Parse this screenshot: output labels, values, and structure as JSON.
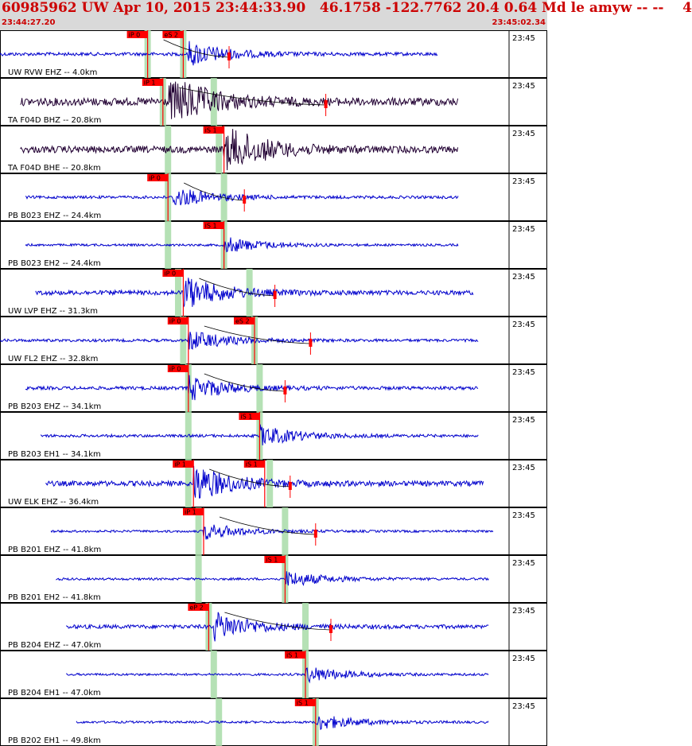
{
  "header": {
    "title": "60985962 UW Apr 10, 2015 23:44:33.90   46.1758 -122.7762 20.4 0.64 Md le amyw -- --    4",
    "start_time": "23:44:27.20",
    "end_time": "23:45:02.34"
  },
  "colors": {
    "header_bg": "#d9d9d9",
    "header_text": "#cc0000",
    "trace_vertical": "#0000cc",
    "trace_horizontal": "#220033",
    "pick_flag": "#ff0000",
    "pick_band": "#a8dca8",
    "panel_border": "#000000"
  },
  "chart_data": {
    "type": "line",
    "title": "60985962 UW Apr 10, 2015 23:44:33.90   46.1758 -122.7762 20.4 0.64 Md le amyw -- --    4",
    "x_axis": {
      "start": "23:44:27.20",
      "end": "23:45:02.34",
      "tick_label": "23:45"
    },
    "traces": [
      {
        "label": "UW RVW EHZ -- 4.0km",
        "network": "UW",
        "station": "RVW",
        "channel": "EHZ",
        "distance_km": 4.0,
        "color": "trace_vertical",
        "amp": 6,
        "quiet_range": [
          0.0,
          0.86
        ],
        "onset": 0.37,
        "picks": [
          {
            "label": "iP 0",
            "t": 0.29
          },
          {
            "label": "eS 2",
            "t": 0.36
          }
        ],
        "green_bands": [
          0.29,
          0.36
        ],
        "coda_red": 0.45
      },
      {
        "label": "TA F04D BHZ -- 20.8km",
        "network": "TA",
        "station": "F04D",
        "channel": "BHZ",
        "distance_km": 20.8,
        "color": "trace_horizontal",
        "amp": 14,
        "quiet_range": [
          0.04,
          0.9
        ],
        "onset": 0.33,
        "picks": [
          {
            "label": "iP 1",
            "t": 0.32
          }
        ],
        "green_bands": [
          0.32,
          0.42
        ],
        "coda_red": 0.64
      },
      {
        "label": "TA F04D BHE -- 20.8km",
        "network": "TA",
        "station": "F04D",
        "channel": "BHE",
        "distance_km": 20.8,
        "color": "trace_horizontal",
        "amp": 12,
        "quiet_range": [
          0.04,
          0.9
        ],
        "onset": 0.44,
        "picks": [
          {
            "label": "iS 1",
            "t": 0.44
          }
        ],
        "green_bands": [
          0.33,
          0.43
        ],
        "coda_red": null
      },
      {
        "label": "PB B023 EHZ -- 24.4km",
        "network": "PB",
        "station": "B023",
        "channel": "EHZ",
        "distance_km": 24.4,
        "color": "trace_vertical",
        "amp": 5,
        "quiet_range": [
          0.05,
          0.9
        ],
        "onset": 0.34,
        "picks": [
          {
            "label": "iP 0",
            "t": 0.33
          }
        ],
        "green_bands": [
          0.33,
          0.44
        ],
        "coda_red": 0.48
      },
      {
        "label": "PB B023 EH2 -- 24.4km",
        "network": "PB",
        "station": "B023",
        "channel": "EH2",
        "distance_km": 24.4,
        "color": "trace_vertical",
        "amp": 4,
        "quiet_range": [
          0.05,
          0.9
        ],
        "onset": 0.44,
        "picks": [
          {
            "label": "iS 1",
            "t": 0.44
          }
        ],
        "green_bands": [
          0.33,
          0.44
        ],
        "coda_red": null
      },
      {
        "label": "UW LVP EHZ -- 31.3km",
        "network": "UW",
        "station": "LVP",
        "channel": "EHZ",
        "distance_km": 31.3,
        "color": "trace_vertical",
        "amp": 8,
        "quiet_range": [
          0.07,
          0.93
        ],
        "onset": 0.36,
        "picks": [
          {
            "label": "iP 0",
            "t": 0.36
          }
        ],
        "green_bands": [
          0.35,
          0.49
        ],
        "coda_red": 0.54
      },
      {
        "label": "UW FL2 EHZ -- 32.8km",
        "network": "UW",
        "station": "FL2",
        "channel": "EHZ",
        "distance_km": 32.8,
        "color": "trace_vertical",
        "amp": 5,
        "quiet_range": [
          0.0,
          0.94
        ],
        "onset": 0.37,
        "picks": [
          {
            "label": "iP 0",
            "t": 0.37
          },
          {
            "label": "eS 2",
            "t": 0.5
          }
        ],
        "green_bands": [
          0.36,
          0.5
        ],
        "coda_red": 0.61
      },
      {
        "label": "PB B203 EHZ -- 34.1km",
        "network": "PB",
        "station": "B203",
        "channel": "EHZ",
        "distance_km": 34.1,
        "color": "trace_vertical",
        "amp": 6,
        "quiet_range": [
          0.05,
          0.94
        ],
        "onset": 0.37,
        "picks": [
          {
            "label": "iP 0",
            "t": 0.37
          }
        ],
        "green_bands": [
          0.37,
          0.51
        ],
        "coda_red": 0.56
      },
      {
        "label": "PB B203 EH1 -- 34.1km",
        "network": "PB",
        "station": "B203",
        "channel": "EH1",
        "distance_km": 34.1,
        "color": "trace_vertical",
        "amp": 5,
        "quiet_range": [
          0.08,
          0.94
        ],
        "onset": 0.51,
        "picks": [
          {
            "label": "iS 1",
            "t": 0.51
          }
        ],
        "green_bands": [
          0.37,
          0.51
        ],
        "coda_red": null
      },
      {
        "label": "UW ELK EHZ -- 36.4km",
        "network": "UW",
        "station": "ELK",
        "channel": "EHZ",
        "distance_km": 36.4,
        "color": "trace_vertical",
        "amp": 9,
        "quiet_range": [
          0.09,
          0.95
        ],
        "onset": 0.38,
        "picks": [
          {
            "label": "iP 1",
            "t": 0.38
          },
          {
            "label": "iS 1",
            "t": 0.52
          }
        ],
        "green_bands": [
          0.37,
          0.53
        ],
        "coda_red": 0.57
      },
      {
        "label": "PB B201 EHZ -- 41.8km",
        "network": "PB",
        "station": "B201",
        "channel": "EHZ",
        "distance_km": 41.8,
        "color": "trace_vertical",
        "amp": 4,
        "quiet_range": [
          0.1,
          0.97
        ],
        "onset": 0.4,
        "picks": [
          {
            "label": "iP 1",
            "t": 0.4
          }
        ],
        "green_bands": [
          0.39,
          0.56
        ],
        "coda_red": 0.62
      },
      {
        "label": "PB B201 EH2 -- 41.8km",
        "network": "PB",
        "station": "B201",
        "channel": "EH2",
        "distance_km": 41.8,
        "color": "trace_vertical",
        "amp": 4,
        "quiet_range": [
          0.11,
          0.96
        ],
        "onset": 0.56,
        "picks": [
          {
            "label": "iS 1",
            "t": 0.56
          }
        ],
        "green_bands": [
          0.39,
          0.56
        ],
        "coda_red": null
      },
      {
        "label": "PB B204 EHZ -- 47.0km",
        "network": "PB",
        "station": "B204",
        "channel": "EHZ",
        "distance_km": 47.0,
        "color": "trace_vertical",
        "amp": 7,
        "quiet_range": [
          0.13,
          0.96
        ],
        "onset": 0.42,
        "picks": [
          {
            "label": "eP 2",
            "t": 0.41
          }
        ],
        "green_bands": [
          0.41,
          0.6
        ],
        "coda_red": 0.65
      },
      {
        "label": "PB B204 EH1 -- 47.0km",
        "network": "PB",
        "station": "B204",
        "channel": "EH1",
        "distance_km": 47.0,
        "color": "trace_vertical",
        "amp": 4,
        "quiet_range": [
          0.13,
          0.96
        ],
        "onset": 0.6,
        "picks": [
          {
            "label": "iS 1",
            "t": 0.6
          }
        ],
        "green_bands": [
          0.42,
          0.6
        ],
        "coda_red": null
      },
      {
        "label": "PB B202 EH1 -- 49.8km",
        "network": "PB",
        "station": "B202",
        "channel": "EH1",
        "distance_km": 49.8,
        "color": "trace_vertical",
        "amp": 4,
        "quiet_range": [
          0.15,
          0.96
        ],
        "onset": 0.62,
        "picks": [
          {
            "label": "iS 1",
            "t": 0.62
          }
        ],
        "green_bands": [
          0.43,
          0.62
        ],
        "coda_red": null
      }
    ]
  }
}
